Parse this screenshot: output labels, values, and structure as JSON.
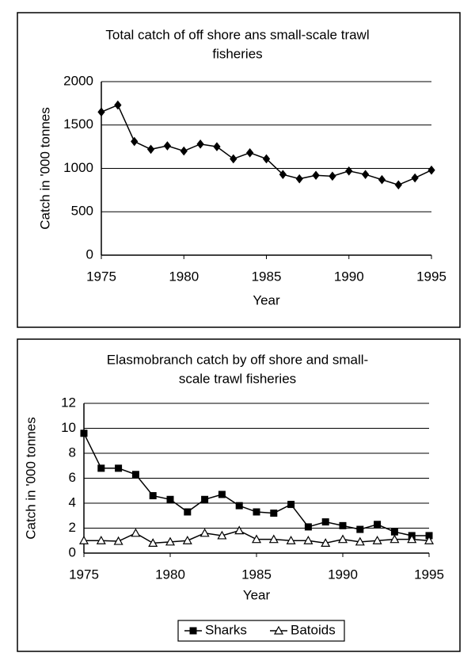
{
  "chart_data": [
    {
      "type": "line",
      "title": [
        "Total catch of off shore ans small-scale trawl",
        "fisheries"
      ],
      "x_label": "Year",
      "y_label": "Catch in '000 tonnes",
      "x": [
        1975,
        1976,
        1977,
        1978,
        1979,
        1980,
        1981,
        1982,
        1983,
        1984,
        1985,
        1986,
        1987,
        1988,
        1989,
        1990,
        1991,
        1992,
        1993,
        1994,
        1995
      ],
      "values": [
        1650,
        1730,
        1310,
        1220,
        1260,
        1200,
        1280,
        1250,
        1110,
        1180,
        1110,
        930,
        880,
        920,
        910,
        970,
        930,
        870,
        810,
        890,
        980
      ],
      "color": "#000000",
      "marker": "diamond",
      "xlim": [
        1975,
        1995
      ],
      "xticks": [
        1975,
        1980,
        1985,
        1990,
        1995
      ],
      "ylim": [
        0,
        2000
      ],
      "yticks": [
        0,
        500,
        1000,
        1500,
        2000
      ],
      "grid": true
    },
    {
      "type": "line",
      "title": [
        "Elasmobranch catch by off shore and small-",
        "scale trawl fisheries"
      ],
      "x_label": "Year",
      "y_label": "Catch in '000 tonnes",
      "x": [
        1975,
        1976,
        1977,
        1978,
        1979,
        1980,
        1981,
        1982,
        1983,
        1984,
        1985,
        1986,
        1987,
        1988,
        1989,
        1990,
        1991,
        1992,
        1993,
        1994,
        1995
      ],
      "series": [
        {
          "name": "Sharks",
          "color": "#000000",
          "marker": "square",
          "values": [
            9.6,
            6.8,
            6.8,
            6.3,
            4.6,
            4.3,
            3.3,
            4.3,
            4.7,
            3.8,
            3.3,
            3.2,
            3.9,
            2.1,
            2.5,
            2.2,
            1.9,
            2.3,
            1.7,
            1.4,
            1.4
          ]
        },
        {
          "name": "Batoids",
          "color": "#000000",
          "marker": "triangle",
          "values": [
            1.0,
            1.0,
            0.95,
            1.6,
            0.8,
            0.9,
            1.0,
            1.6,
            1.4,
            1.8,
            1.1,
            1.1,
            1.0,
            1.0,
            0.8,
            1.1,
            0.9,
            1.0,
            1.1,
            1.1,
            1.0
          ]
        }
      ],
      "xlim": [
        1975,
        1995
      ],
      "xticks": [
        1975,
        1980,
        1985,
        1990,
        1995
      ],
      "ylim": [
        0,
        12
      ],
      "yticks": [
        0,
        2,
        4,
        6,
        8,
        10,
        12
      ],
      "grid": true,
      "legend": "bottom"
    }
  ]
}
